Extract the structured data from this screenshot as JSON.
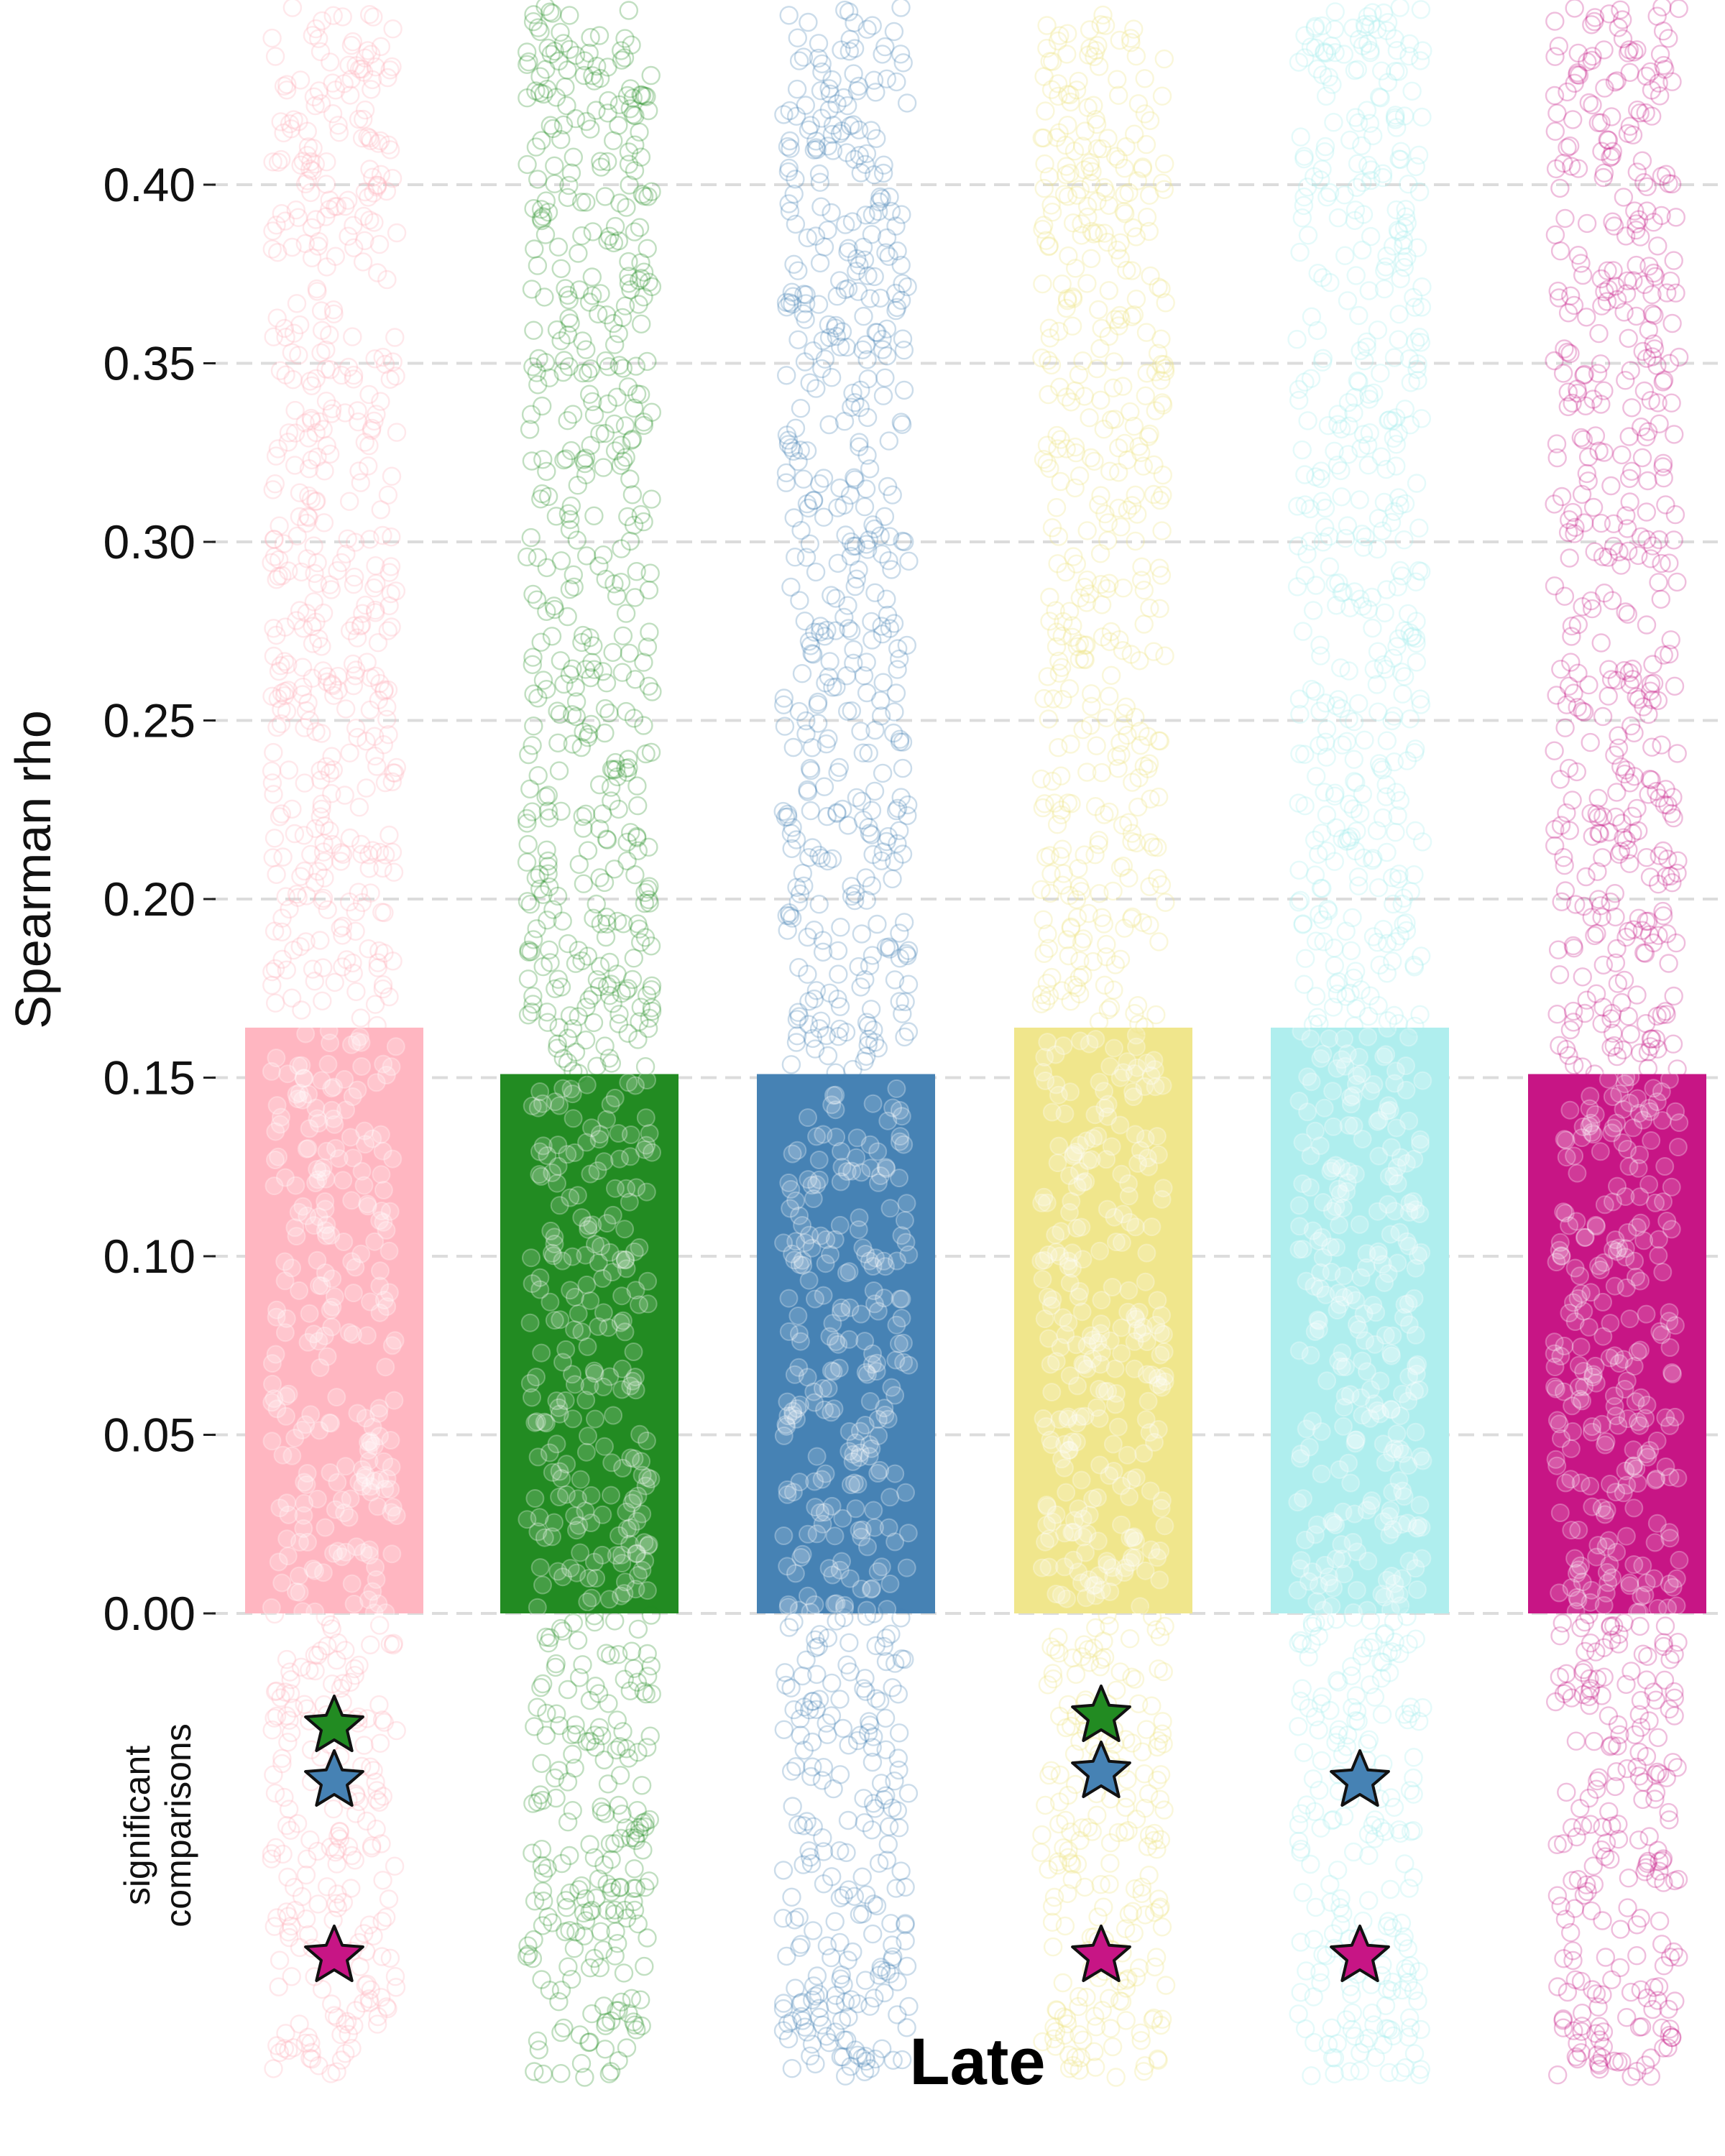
{
  "chart_data": {
    "type": "bar",
    "xlabel": "Late",
    "ylabel": "Spearman rho",
    "ylim": [
      0,
      0.45
    ],
    "yticks": [
      "0.00",
      "0.05",
      "0.10",
      "0.15",
      "0.20",
      "0.25",
      "0.30",
      "0.35",
      "0.40"
    ],
    "grid": true,
    "categories": [
      "",
      "",
      "",
      "",
      "",
      ""
    ],
    "colors": [
      "#ffb6c1",
      "#228b22",
      "#4682b4",
      "#f0e68c",
      "#afeeee",
      "#c71585"
    ],
    "values": [
      0.164,
      0.151,
      0.151,
      0.164,
      0.164,
      0.151
    ],
    "scatter_range": [
      -0.13,
      0.45
    ],
    "significance": {
      "label_line1": "significant",
      "label_line2": "comparisons",
      "rows": [
        "#228b22",
        "#4682b4",
        "#c71585"
      ],
      "marks": [
        {
          "bar": 0,
          "stars": [
            "#228b22",
            "#4682b4",
            "#c71585"
          ]
        },
        {
          "bar": 3,
          "stars": [
            "#228b22",
            "#4682b4",
            "#c71585"
          ]
        },
        {
          "bar": 4,
          "stars": [
            "#4682b4",
            "#c71585"
          ]
        }
      ]
    }
  }
}
